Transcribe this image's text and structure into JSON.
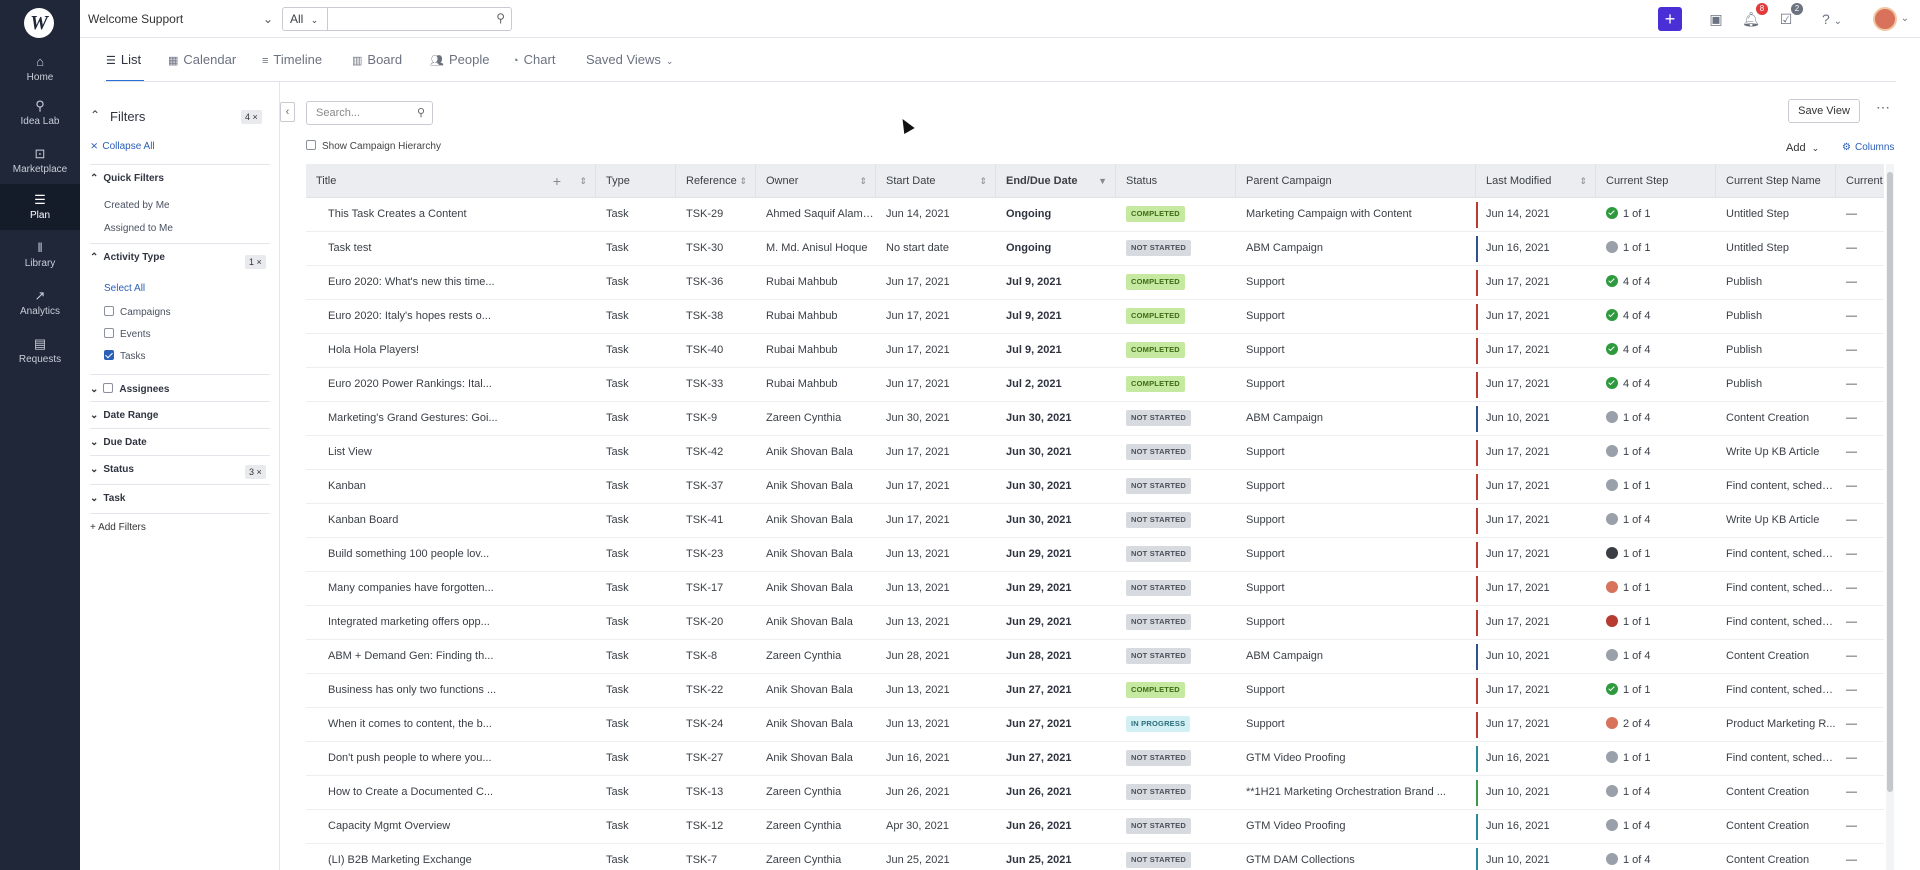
{
  "app": {
    "logo_letter": "W"
  },
  "rail": [
    {
      "label": "Home",
      "icon": "⌂"
    },
    {
      "label": "Idea Lab",
      "icon": "⚲"
    },
    {
      "label": "Marketplace",
      "icon": "⊡"
    },
    {
      "label": "Plan",
      "icon": "☰"
    },
    {
      "label": "Library",
      "icon": "‖"
    },
    {
      "label": "Analytics",
      "icon": "↗"
    },
    {
      "label": "Requests",
      "icon": "▤"
    }
  ],
  "topbar": {
    "workspace": "Welcome Support",
    "scope": "All",
    "notifications_count": "8",
    "tasks_count": "2"
  },
  "view_tabs": [
    "List",
    "Calendar",
    "Timeline",
    "Board",
    "People",
    "Chart",
    "Saved Views"
  ],
  "filters": {
    "title": "Filters",
    "count": "4 ×",
    "collapse_all": "Collapse All",
    "quick_filters": "Quick Filters",
    "created_by_me": "Created by Me",
    "assigned_to_me": "Assigned to Me",
    "activity_type": "Activity Type",
    "activity_count": "1 ×",
    "select_all": "Select All",
    "campaigns": "Campaigns",
    "events": "Events",
    "tasks": "Tasks",
    "assignees": "Assignees",
    "date_range": "Date Range",
    "due_date": "Due Date",
    "status": "Status",
    "status_count": "3 ×",
    "task": "Task",
    "add_filters": "+ Add Filters"
  },
  "toolbar": {
    "search_placeholder": "Search...",
    "show_hierarchy": "Show Campaign Hierarchy",
    "save_view": "Save View",
    "add": "Add",
    "columns": "Columns"
  },
  "columns": [
    "Title",
    "Type",
    "Reference",
    "Owner",
    "Start Date",
    "End/Due Date",
    "Status",
    "Parent Campaign",
    "Last Modified",
    "Current Step",
    "Current Step Name",
    "Current"
  ],
  "rows": [
    {
      "title": "This Task Creates a Content",
      "type": "Task",
      "ref": "TSK-29",
      "owner": "Ahmed Saquif Alam Ar",
      "start": "Jun 14, 2021",
      "end": "Ongoing",
      "status": "COMPLETED",
      "status_kind": "completed",
      "parent": "Marketing Campaign with Content",
      "bar": "#b83b32",
      "modified": "Jun 14, 2021",
      "step_icon": "check",
      "step": "1 of 1",
      "step_name": "Untitled Step",
      "current": "—"
    },
    {
      "title": "Task test",
      "type": "Task",
      "ref": "TSK-30",
      "owner": "M. Md. Anisul Hoque",
      "start": "No start date",
      "end": "Ongoing",
      "status": "NOT STARTED",
      "status_kind": "not",
      "parent": "ABM Campaign",
      "bar": "#2f4f8f",
      "modified": "Jun 16, 2021",
      "step_icon": "person",
      "step": "1 of 1",
      "step_name": "Untitled Step",
      "current": "—"
    },
    {
      "title": "Euro 2020: What's new this time...",
      "type": "Task",
      "ref": "TSK-36",
      "owner": "Rubai Mahbub",
      "start": "Jun 17, 2021",
      "end": "Jul 9, 2021",
      "status": "COMPLETED",
      "status_kind": "completed",
      "parent": "Support",
      "bar": "#b83b32",
      "modified": "Jun 17, 2021",
      "step_icon": "check",
      "step": "4 of 4",
      "step_name": "Publish",
      "current": "—"
    },
    {
      "title": "Euro 2020: Italy's hopes rests o...",
      "type": "Task",
      "ref": "TSK-38",
      "owner": "Rubai Mahbub",
      "start": "Jun 17, 2021",
      "end": "Jul 9, 2021",
      "status": "COMPLETED",
      "status_kind": "completed",
      "parent": "Support",
      "bar": "#b83b32",
      "modified": "Jun 17, 2021",
      "step_icon": "check",
      "step": "4 of 4",
      "step_name": "Publish",
      "current": "—"
    },
    {
      "title": "Hola Hola Players!",
      "type": "Task",
      "ref": "TSK-40",
      "owner": "Rubai Mahbub",
      "start": "Jun 17, 2021",
      "end": "Jul 9, 2021",
      "status": "COMPLETED",
      "status_kind": "completed",
      "parent": "Support",
      "bar": "#b83b32",
      "modified": "Jun 17, 2021",
      "step_icon": "check",
      "step": "4 of 4",
      "step_name": "Publish",
      "current": "—"
    },
    {
      "title": "Euro 2020 Power Rankings: Ital...",
      "type": "Task",
      "ref": "TSK-33",
      "owner": "Rubai Mahbub",
      "start": "Jun 17, 2021",
      "end": "Jul 2, 2021",
      "status": "COMPLETED",
      "status_kind": "completed",
      "parent": "Support",
      "bar": "#b83b32",
      "modified": "Jun 17, 2021",
      "step_icon": "check",
      "step": "4 of 4",
      "step_name": "Publish",
      "current": "—"
    },
    {
      "title": "Marketing's Grand Gestures: Goi...",
      "type": "Task",
      "ref": "TSK-9",
      "owner": "Zareen Cynthia",
      "start": "Jun 30, 2021",
      "end": "Jun 30, 2021",
      "status": "NOT STARTED",
      "status_kind": "not",
      "parent": "ABM Campaign",
      "bar": "#2f4f8f",
      "modified": "Jun 10, 2021",
      "step_icon": "person",
      "step": "1 of 4",
      "step_name": "Content Creation",
      "current": "—"
    },
    {
      "title": "List View",
      "type": "Task",
      "ref": "TSK-42",
      "owner": "Anik Shovan Bala",
      "start": "Jun 17, 2021",
      "end": "Jun 30, 2021",
      "status": "NOT STARTED",
      "status_kind": "not",
      "parent": "Support",
      "bar": "#b83b32",
      "modified": "Jun 17, 2021",
      "step_icon": "person",
      "step": "1 of 4",
      "step_name": "Write Up KB Article",
      "current": "—"
    },
    {
      "title": "Kanban",
      "type": "Task",
      "ref": "TSK-37",
      "owner": "Anik Shovan Bala",
      "start": "Jun 17, 2021",
      "end": "Jun 30, 2021",
      "status": "NOT STARTED",
      "status_kind": "not",
      "parent": "Support",
      "bar": "#b83b32",
      "modified": "Jun 17, 2021",
      "step_icon": "person",
      "step": "1 of 1",
      "step_name": "Find content, schedu...",
      "current": "—"
    },
    {
      "title": "Kanban Board",
      "type": "Task",
      "ref": "TSK-41",
      "owner": "Anik Shovan Bala",
      "start": "Jun 17, 2021",
      "end": "Jun 30, 2021",
      "status": "NOT STARTED",
      "status_kind": "not",
      "parent": "Support",
      "bar": "#b83b32",
      "modified": "Jun 17, 2021",
      "step_icon": "person",
      "step": "1 of 4",
      "step_name": "Write Up KB Article",
      "current": "—"
    },
    {
      "title": "Build something 100 people lov...",
      "type": "Task",
      "ref": "TSK-23",
      "owner": "Anik Shovan Bala",
      "start": "Jun 13, 2021",
      "end": "Jun 29, 2021",
      "status": "NOT STARTED",
      "status_kind": "not",
      "parent": "Support",
      "bar": "#b83b32",
      "modified": "Jun 17, 2021",
      "step_icon": "dark",
      "step": "1 of 1",
      "step_name": "Find content, schedu...",
      "current": "—"
    },
    {
      "title": "Many companies have forgotten...",
      "type": "Task",
      "ref": "TSK-17",
      "owner": "Anik Shovan Bala",
      "start": "Jun 13, 2021",
      "end": "Jun 29, 2021",
      "status": "NOT STARTED",
      "status_kind": "not",
      "parent": "Support",
      "bar": "#b83b32",
      "modified": "Jun 17, 2021",
      "step_icon": "orange",
      "step": "1 of 1",
      "step_name": "Find content, schedu...",
      "current": "—"
    },
    {
      "title": "Integrated marketing offers opp...",
      "type": "Task",
      "ref": "TSK-20",
      "owner": "Anik Shovan Bala",
      "start": "Jun 13, 2021",
      "end": "Jun 29, 2021",
      "status": "NOT STARTED",
      "status_kind": "not",
      "parent": "Support",
      "bar": "#b83b32",
      "modified": "Jun 17, 2021",
      "step_icon": "red",
      "step": "1 of 1",
      "step_name": "Find content, schedu...",
      "current": "—"
    },
    {
      "title": "ABM + Demand Gen: Finding th...",
      "type": "Task",
      "ref": "TSK-8",
      "owner": "Zareen Cynthia",
      "start": "Jun 28, 2021",
      "end": "Jun 28, 2021",
      "status": "NOT STARTED",
      "status_kind": "not",
      "parent": "ABM Campaign",
      "bar": "#2f4f8f",
      "modified": "Jun 10, 2021",
      "step_icon": "person",
      "step": "1 of 4",
      "step_name": "Content Creation",
      "current": "—"
    },
    {
      "title": "Business has only two functions ...",
      "type": "Task",
      "ref": "TSK-22",
      "owner": "Anik Shovan Bala",
      "start": "Jun 13, 2021",
      "end": "Jun 27, 2021",
      "status": "COMPLETED",
      "status_kind": "completed",
      "parent": "Support",
      "bar": "#b83b32",
      "modified": "Jun 17, 2021",
      "step_icon": "check",
      "step": "1 of 1",
      "step_name": "Find content, schedu...",
      "current": "—"
    },
    {
      "title": "When it comes to content, the b...",
      "type": "Task",
      "ref": "TSK-24",
      "owner": "Anik Shovan Bala",
      "start": "Jun 13, 2021",
      "end": "Jun 27, 2021",
      "status": "IN PROGRESS",
      "status_kind": "prog",
      "parent": "Support",
      "bar": "#b83b32",
      "modified": "Jun 17, 2021",
      "step_icon": "orange",
      "step": "2 of 4",
      "step_name": "Product Marketing R...",
      "current": "—"
    },
    {
      "title": "Don't push people to where you...",
      "type": "Task",
      "ref": "TSK-27",
      "owner": "Anik Shovan Bala",
      "start": "Jun 16, 2021",
      "end": "Jun 27, 2021",
      "status": "NOT STARTED",
      "status_kind": "not",
      "parent": "GTM Video Proofing",
      "bar": "#2a8a9a",
      "modified": "Jun 16, 2021",
      "step_icon": "person",
      "step": "1 of 1",
      "step_name": "Find content, schedu...",
      "current": "—"
    },
    {
      "title": "How to Create a Documented C...",
      "type": "Task",
      "ref": "TSK-13",
      "owner": "Zareen Cynthia",
      "start": "Jun 26, 2021",
      "end": "Jun 26, 2021",
      "status": "NOT STARTED",
      "status_kind": "not",
      "parent": "**1H21 Marketing Orchestration Brand ...",
      "bar": "#3a9a4a",
      "modified": "Jun 10, 2021",
      "step_icon": "person",
      "step": "1 of 4",
      "step_name": "Content Creation",
      "current": "—"
    },
    {
      "title": "Capacity Mgmt Overview",
      "type": "Task",
      "ref": "TSK-12",
      "owner": "Zareen Cynthia",
      "start": "Apr 30, 2021",
      "end": "Jun 26, 2021",
      "status": "NOT STARTED",
      "status_kind": "not",
      "parent": "GTM Video Proofing",
      "bar": "#2a8a9a",
      "modified": "Jun 16, 2021",
      "step_icon": "person",
      "step": "1 of 4",
      "step_name": "Content Creation",
      "current": "—"
    },
    {
      "title": "(LI) B2B Marketing Exchange",
      "type": "Task",
      "ref": "TSK-7",
      "owner": "Zareen Cynthia",
      "start": "Jun 25, 2021",
      "end": "Jun 25, 2021",
      "status": "NOT STARTED",
      "status_kind": "not",
      "parent": "GTM DAM Collections",
      "bar": "#2a8a9a",
      "modified": "Jun 10, 2021",
      "step_icon": "person",
      "step": "1 of 4",
      "step_name": "Content Creation",
      "current": "—"
    }
  ]
}
